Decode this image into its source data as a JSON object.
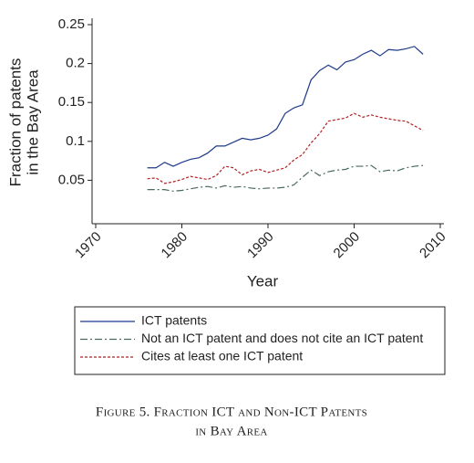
{
  "chart_data": {
    "type": "line",
    "ylabel": [
      "Fraction of patents",
      "in the Bay Area"
    ],
    "xlabel": "Year",
    "caption": [
      "Figure 5. Fraction ICT and Non-ICT Patents",
      "in Bay Area"
    ],
    "x": [
      1976,
      1977,
      1978,
      1979,
      1980,
      1981,
      1982,
      1983,
      1984,
      1985,
      1986,
      1987,
      1988,
      1989,
      1990,
      1991,
      1992,
      1993,
      1994,
      1995,
      1996,
      1997,
      1998,
      1999,
      2000,
      2001,
      2002,
      2003,
      2004,
      2005,
      2006,
      2007,
      2008
    ],
    "series": [
      {
        "name": "ICT patents",
        "color": "#1f3a8c",
        "dash": "none",
        "values": [
          0.066,
          0.066,
          0.073,
          0.068,
          0.073,
          0.077,
          0.079,
          0.085,
          0.094,
          0.094,
          0.099,
          0.104,
          0.102,
          0.104,
          0.108,
          0.116,
          0.136,
          0.143,
          0.147,
          0.179,
          0.191,
          0.198,
          0.192,
          0.202,
          0.205,
          0.212,
          0.217,
          0.21,
          0.218,
          0.217,
          0.219,
          0.222,
          0.212
        ]
      },
      {
        "name": "Not an ICT patent and does not cite an ICT patent",
        "color": "#4a6a5a",
        "dash": "8 3 2 3",
        "values": [
          0.038,
          0.038,
          0.038,
          0.036,
          0.037,
          0.039,
          0.041,
          0.042,
          0.04,
          0.043,
          0.041,
          0.042,
          0.04,
          0.039,
          0.04,
          0.04,
          0.041,
          0.044,
          0.054,
          0.063,
          0.056,
          0.061,
          0.063,
          0.064,
          0.068,
          0.068,
          0.069,
          0.061,
          0.063,
          0.062,
          0.066,
          0.068,
          0.069
        ]
      },
      {
        "name": "Cites at least one ICT patent",
        "color": "#b02020",
        "dash": "3 2",
        "values": [
          0.052,
          0.053,
          0.046,
          0.048,
          0.051,
          0.055,
          0.053,
          0.051,
          0.056,
          0.068,
          0.066,
          0.057,
          0.062,
          0.064,
          0.06,
          0.063,
          0.066,
          0.076,
          0.083,
          0.098,
          0.11,
          0.126,
          0.128,
          0.13,
          0.136,
          0.131,
          0.134,
          0.131,
          0.129,
          0.127,
          0.126,
          0.12,
          0.114
        ]
      }
    ],
    "xlim": [
      1970,
      2010
    ],
    "xticks": [
      1970,
      1980,
      1990,
      2000,
      2010
    ],
    "ylim": [
      0,
      0.25
    ],
    "yticks": [
      0.05,
      0.1,
      0.15,
      0.2,
      0.25
    ],
    "grid": false,
    "legend": "bottom"
  }
}
